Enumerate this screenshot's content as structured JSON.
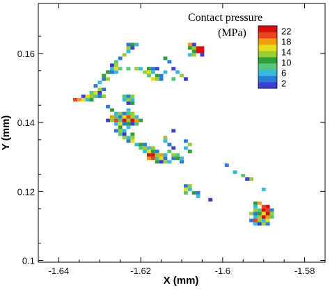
{
  "chart_data": {
    "type": "heatmap",
    "xlabel": "X (mm)",
    "ylabel": "Y (mm)",
    "xlim": [
      -1.645,
      -1.575
    ],
    "ylim": [
      0.0995,
      0.1745
    ],
    "x_ticks": [
      -1.64,
      -1.62,
      -1.6,
      -1.58
    ],
    "x_tick_labels": [
      "-1.64",
      "-1.62",
      "-1.6",
      "-1.58"
    ],
    "y_ticks": [
      0.1,
      0.12,
      0.14,
      0.16
    ],
    "y_tick_labels": [
      "0.1",
      "0.12",
      "0.14",
      "0.16"
    ],
    "cell_size_mm": 0.001,
    "colorbar": {
      "title_line1": "Contact pressure",
      "title_line2": "(MPa)",
      "min": 0,
      "max": 24,
      "tick_values": [
        22,
        18,
        14,
        10,
        6,
        2
      ],
      "tick_labels": [
        "22",
        "18",
        "14",
        "10",
        "6",
        "2"
      ],
      "colors": [
        "#3a3fcf",
        "#2a7bd6",
        "#3bb8dd",
        "#56c77a",
        "#2f9e3a",
        "#9acd32",
        "#e7dc1c",
        "#f39c12",
        "#e8441e",
        "#d80d0d"
      ]
    },
    "grid": false,
    "legend_placement": "top-right",
    "cells": [
      [
        -1.623,
        0.1626,
        4
      ],
      [
        -1.622,
        0.1626,
        10
      ],
      [
        -1.621,
        0.1626,
        6
      ],
      [
        -1.623,
        0.1616,
        14
      ],
      [
        -1.622,
        0.1616,
        2
      ],
      [
        -1.623,
        0.1606,
        6
      ],
      [
        -1.624,
        0.1596,
        12
      ],
      [
        -1.625,
        0.1586,
        4
      ],
      [
        -1.626,
        0.1576,
        9
      ],
      [
        -1.627,
        0.1566,
        2
      ],
      [
        -1.626,
        0.1566,
        13
      ],
      [
        -1.627,
        0.1556,
        5
      ],
      [
        -1.628,
        0.1546,
        11
      ],
      [
        -1.627,
        0.1546,
        3
      ],
      [
        -1.626,
        0.1546,
        7
      ],
      [
        -1.629,
        0.1536,
        10
      ],
      [
        -1.629,
        0.1526,
        3
      ],
      [
        -1.628,
        0.1526,
        12
      ],
      [
        -1.626,
        0.1556,
        16
      ],
      [
        -1.625,
        0.1556,
        8
      ],
      [
        -1.623,
        0.1556,
        9
      ],
      [
        -1.621,
        0.1556,
        14
      ],
      [
        -1.62,
        0.1556,
        7
      ],
      [
        -1.618,
        0.1556,
        11
      ],
      [
        -1.617,
        0.1556,
        4
      ],
      [
        -1.616,
        0.1556,
        2
      ],
      [
        -1.614,
        0.1546,
        6
      ],
      [
        -1.619,
        0.1546,
        12
      ],
      [
        -1.618,
        0.1546,
        15
      ],
      [
        -1.617,
        0.1546,
        5
      ],
      [
        -1.616,
        0.1536,
        10
      ],
      [
        -1.615,
        0.1536,
        3
      ],
      [
        -1.618,
        0.1536,
        8
      ],
      [
        -1.617,
        0.1526,
        16
      ],
      [
        -1.616,
        0.1526,
        13
      ],
      [
        -1.615,
        0.1526,
        4
      ],
      [
        -1.612,
        0.1556,
        2
      ],
      [
        -1.611,
        0.1546,
        5
      ],
      [
        -1.61,
        0.1536,
        12
      ],
      [
        -1.609,
        0.1526,
        2
      ],
      [
        -1.612,
        0.1526,
        9
      ],
      [
        -1.614,
        0.1586,
        10
      ],
      [
        -1.613,
        0.1576,
        4
      ],
      [
        -1.608,
        0.1626,
        18
      ],
      [
        -1.607,
        0.1626,
        2
      ],
      [
        -1.608,
        0.1616,
        11
      ],
      [
        -1.607,
        0.1616,
        12
      ],
      [
        -1.606,
        0.1616,
        22
      ],
      [
        -1.605,
        0.1616,
        23
      ],
      [
        -1.607,
        0.1606,
        10
      ],
      [
        -1.606,
        0.1606,
        22
      ],
      [
        -1.605,
        0.1606,
        23
      ],
      [
        -1.608,
        0.1596,
        5
      ],
      [
        -1.607,
        0.1596,
        13
      ],
      [
        -1.605,
        0.1596,
        2
      ],
      [
        -1.63,
        0.1516,
        6
      ],
      [
        -1.631,
        0.1506,
        3
      ],
      [
        -1.63,
        0.1496,
        12
      ],
      [
        -1.629,
        0.1496,
        4
      ],
      [
        -1.632,
        0.1486,
        9
      ],
      [
        -1.631,
        0.1486,
        15
      ],
      [
        -1.63,
        0.1486,
        2
      ],
      [
        -1.634,
        0.1476,
        2
      ],
      [
        -1.633,
        0.1476,
        16
      ],
      [
        -1.632,
        0.1476,
        13
      ],
      [
        -1.631,
        0.1476,
        8
      ],
      [
        -1.63,
        0.1476,
        4
      ],
      [
        -1.629,
        0.1476,
        12
      ],
      [
        -1.636,
        0.1466,
        21
      ],
      [
        -1.635,
        0.1466,
        19
      ],
      [
        -1.634,
        0.1466,
        15
      ],
      [
        -1.633,
        0.1466,
        6
      ],
      [
        -1.632,
        0.1466,
        10
      ],
      [
        -1.624,
        0.1476,
        8
      ],
      [
        -1.623,
        0.1476,
        3
      ],
      [
        -1.622,
        0.1476,
        12
      ],
      [
        -1.624,
        0.1466,
        5
      ],
      [
        -1.623,
        0.1466,
        14
      ],
      [
        -1.622,
        0.1466,
        7
      ],
      [
        -1.623,
        0.1456,
        2
      ],
      [
        -1.622,
        0.1456,
        10
      ],
      [
        -1.628,
        0.1446,
        4
      ],
      [
        -1.627,
        0.1436,
        10
      ],
      [
        -1.623,
        0.1436,
        6
      ],
      [
        -1.626,
        0.1426,
        5
      ],
      [
        -1.625,
        0.1426,
        12
      ],
      [
        -1.624,
        0.1426,
        3
      ],
      [
        -1.623,
        0.1426,
        9
      ],
      [
        -1.622,
        0.1426,
        14
      ],
      [
        -1.627,
        0.1416,
        18
      ],
      [
        -1.626,
        0.1416,
        8
      ],
      [
        -1.625,
        0.1416,
        3
      ],
      [
        -1.624,
        0.1416,
        16
      ],
      [
        -1.623,
        0.1416,
        21
      ],
      [
        -1.622,
        0.1416,
        13
      ],
      [
        -1.621,
        0.1416,
        5
      ],
      [
        -1.628,
        0.1406,
        2
      ],
      [
        -1.627,
        0.1406,
        12
      ],
      [
        -1.626,
        0.1406,
        21
      ],
      [
        -1.625,
        0.1406,
        9
      ],
      [
        -1.624,
        0.1406,
        22
      ],
      [
        -1.623,
        0.1406,
        14
      ],
      [
        -1.622,
        0.1406,
        22
      ],
      [
        -1.621,
        0.1406,
        18
      ],
      [
        -1.62,
        0.1406,
        10
      ],
      [
        -1.626,
        0.1396,
        6
      ],
      [
        -1.625,
        0.1396,
        15
      ],
      [
        -1.624,
        0.1396,
        4
      ],
      [
        -1.623,
        0.1396,
        11
      ],
      [
        -1.622,
        0.1396,
        2
      ],
      [
        -1.621,
        0.1396,
        8
      ],
      [
        -1.625,
        0.1386,
        10
      ],
      [
        -1.623,
        0.1386,
        7
      ],
      [
        -1.626,
        0.1376,
        3
      ],
      [
        -1.625,
        0.1376,
        12
      ],
      [
        -1.624,
        0.1376,
        6
      ],
      [
        -1.625,
        0.1366,
        8
      ],
      [
        -1.624,
        0.1366,
        2
      ],
      [
        -1.622,
        0.1366,
        10
      ],
      [
        -1.624,
        0.1356,
        14
      ],
      [
        -1.623,
        0.1356,
        5
      ],
      [
        -1.622,
        0.1356,
        12
      ],
      [
        -1.623,
        0.1346,
        4
      ],
      [
        -1.622,
        0.1346,
        16
      ],
      [
        -1.621,
        0.1336,
        6
      ],
      [
        -1.62,
        0.1336,
        11
      ],
      [
        -1.619,
        0.1336,
        3
      ],
      [
        -1.62,
        0.1326,
        9
      ],
      [
        -1.619,
        0.1326,
        14
      ],
      [
        -1.618,
        0.1326,
        5
      ],
      [
        -1.617,
        0.1326,
        12
      ],
      [
        -1.619,
        0.1316,
        7
      ],
      [
        -1.618,
        0.1316,
        15
      ],
      [
        -1.617,
        0.1316,
        10
      ],
      [
        -1.616,
        0.1316,
        3
      ],
      [
        -1.618,
        0.1306,
        22
      ],
      [
        -1.617,
        0.1306,
        23
      ],
      [
        -1.616,
        0.1306,
        13
      ],
      [
        -1.615,
        0.1306,
        18
      ],
      [
        -1.614,
        0.1306,
        6
      ],
      [
        -1.618,
        0.1296,
        18
      ],
      [
        -1.617,
        0.1296,
        21
      ],
      [
        -1.616,
        0.1296,
        8
      ],
      [
        -1.615,
        0.1296,
        15
      ],
      [
        -1.614,
        0.1296,
        4
      ],
      [
        -1.616,
        0.1286,
        10
      ],
      [
        -1.615,
        0.1286,
        2
      ],
      [
        -1.614,
        0.1286,
        12
      ],
      [
        -1.613,
        0.1286,
        6
      ],
      [
        -1.612,
        0.1306,
        14
      ],
      [
        -1.611,
        0.1306,
        8
      ],
      [
        -1.612,
        0.1296,
        3
      ],
      [
        -1.611,
        0.1296,
        11
      ],
      [
        -1.61,
        0.1296,
        5
      ],
      [
        -1.613,
        0.1316,
        9
      ],
      [
        -1.613,
        0.1336,
        4
      ],
      [
        -1.612,
        0.1326,
        2
      ],
      [
        -1.614,
        0.1346,
        7
      ],
      [
        -1.614,
        0.1356,
        12
      ],
      [
        -1.609,
        0.1346,
        3
      ],
      [
        -1.608,
        0.1336,
        14
      ],
      [
        -1.609,
        0.1326,
        6
      ],
      [
        -1.608,
        0.1316,
        10
      ],
      [
        -1.612,
        0.1376,
        2
      ],
      [
        -1.61,
        0.1286,
        3
      ],
      [
        -1.609,
        0.1216,
        4
      ],
      [
        -1.608,
        0.1216,
        12
      ],
      [
        -1.609,
        0.1206,
        16
      ],
      [
        -1.608,
        0.1206,
        6
      ],
      [
        -1.607,
        0.1196,
        10
      ],
      [
        -1.606,
        0.1196,
        3
      ],
      [
        -1.609,
        0.1196,
        8
      ],
      [
        -1.606,
        0.1186,
        5
      ],
      [
        -1.603,
        0.1176,
        2
      ],
      [
        -1.599,
        0.1276,
        3
      ],
      [
        -1.597,
        0.1256,
        6
      ],
      [
        -1.595,
        0.1246,
        9
      ],
      [
        -1.594,
        0.1236,
        2
      ],
      [
        -1.593,
        0.1236,
        12
      ],
      [
        -1.59,
        0.1206,
        5
      ],
      [
        -1.592,
        0.1166,
        10
      ],
      [
        -1.591,
        0.1166,
        18
      ],
      [
        -1.59,
        0.1156,
        20
      ],
      [
        -1.589,
        0.1156,
        22
      ],
      [
        -1.592,
        0.1156,
        6
      ],
      [
        -1.592,
        0.1146,
        14
      ],
      [
        -1.591,
        0.1146,
        8
      ],
      [
        -1.59,
        0.1146,
        22
      ],
      [
        -1.589,
        0.1146,
        21
      ],
      [
        -1.588,
        0.1146,
        4
      ],
      [
        -1.593,
        0.1136,
        12
      ],
      [
        -1.592,
        0.1136,
        3
      ],
      [
        -1.591,
        0.1136,
        10
      ],
      [
        -1.59,
        0.1136,
        16
      ],
      [
        -1.589,
        0.1136,
        22
      ],
      [
        -1.588,
        0.1136,
        12
      ],
      [
        -1.592,
        0.1126,
        5
      ],
      [
        -1.591,
        0.1126,
        14
      ],
      [
        -1.59,
        0.1126,
        23
      ],
      [
        -1.589,
        0.1126,
        18
      ],
      [
        -1.588,
        0.1126,
        9
      ],
      [
        -1.593,
        0.1116,
        3
      ],
      [
        -1.592,
        0.1116,
        21
      ],
      [
        -1.591,
        0.1116,
        13
      ],
      [
        -1.59,
        0.1116,
        6
      ],
      [
        -1.589,
        0.1116,
        15
      ],
      [
        -1.592,
        0.1106,
        7
      ],
      [
        -1.591,
        0.1106,
        2
      ],
      [
        -1.59,
        0.1106,
        12
      ],
      [
        -1.589,
        0.1106,
        4
      ]
    ]
  }
}
